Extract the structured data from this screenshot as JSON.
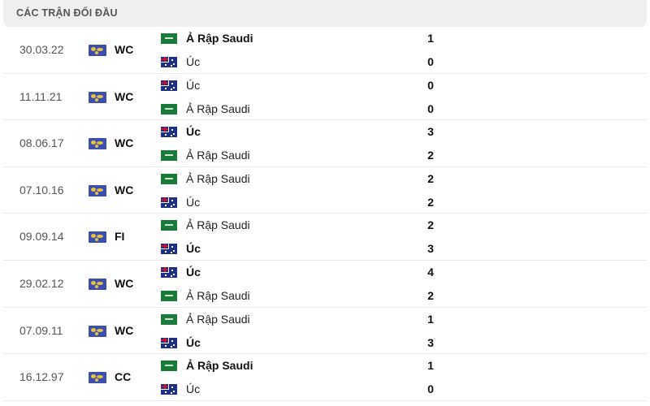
{
  "title": "CÁC TRẬN ĐỐI ĐẦU",
  "matches": [
    {
      "date": "30.03.22",
      "competition": "WC",
      "home": {
        "name": "Ả Rập Saudi",
        "flag": "sa",
        "score": "1",
        "winner": true
      },
      "away": {
        "name": "Úc",
        "flag": "au",
        "score": "0",
        "winner": false
      }
    },
    {
      "date": "11.11.21",
      "competition": "WC",
      "home": {
        "name": "Úc",
        "flag": "au",
        "score": "0",
        "winner": false
      },
      "away": {
        "name": "Ả Rập Saudi",
        "flag": "sa",
        "score": "0",
        "winner": false
      }
    },
    {
      "date": "08.06.17",
      "competition": "WC",
      "home": {
        "name": "Úc",
        "flag": "au",
        "score": "3",
        "winner": true
      },
      "away": {
        "name": "Ả Rập Saudi",
        "flag": "sa",
        "score": "2",
        "winner": false
      }
    },
    {
      "date": "07.10.16",
      "competition": "WC",
      "home": {
        "name": "Ả Rập Saudi",
        "flag": "sa",
        "score": "2",
        "winner": false
      },
      "away": {
        "name": "Úc",
        "flag": "au",
        "score": "2",
        "winner": false
      }
    },
    {
      "date": "09.09.14",
      "competition": "FI",
      "home": {
        "name": "Ả Rập Saudi",
        "flag": "sa",
        "score": "2",
        "winner": false
      },
      "away": {
        "name": "Úc",
        "flag": "au",
        "score": "3",
        "winner": true
      }
    },
    {
      "date": "29.02.12",
      "competition": "WC",
      "home": {
        "name": "Úc",
        "flag": "au",
        "score": "4",
        "winner": true
      },
      "away": {
        "name": "Ả Rập Saudi",
        "flag": "sa",
        "score": "2",
        "winner": false
      }
    },
    {
      "date": "07.09.11",
      "competition": "WC",
      "home": {
        "name": "Ả Rập Saudi",
        "flag": "sa",
        "score": "1",
        "winner": false
      },
      "away": {
        "name": "Úc",
        "flag": "au",
        "score": "3",
        "winner": true
      }
    },
    {
      "date": "16.12.97",
      "competition": "CC",
      "home": {
        "name": "Ả Rập Saudi",
        "flag": "sa",
        "score": "1",
        "winner": true
      },
      "away": {
        "name": "Úc",
        "flag": "au",
        "score": "0",
        "winner": false
      }
    }
  ]
}
